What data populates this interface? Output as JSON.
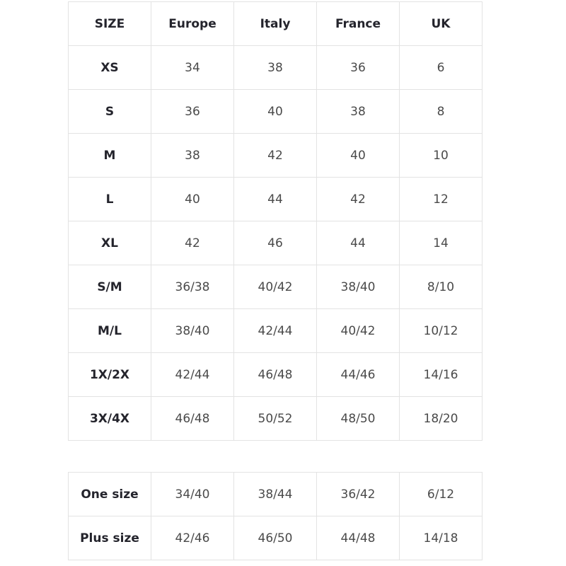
{
  "size_chart": {
    "headers": [
      "SIZE",
      "Europe",
      "Italy",
      "France",
      "UK"
    ],
    "rows": [
      [
        "XS",
        "34",
        "38",
        "36",
        "6"
      ],
      [
        "S",
        "36",
        "40",
        "38",
        "8"
      ],
      [
        "M",
        "38",
        "42",
        "40",
        "10"
      ],
      [
        "L",
        "40",
        "44",
        "42",
        "12"
      ],
      [
        "XL",
        "42",
        "46",
        "44",
        "14"
      ],
      [
        "S/M",
        "36/38",
        "40/42",
        "38/40",
        "8/10"
      ],
      [
        "M/L",
        "38/40",
        "42/44",
        "40/42",
        "10/12"
      ],
      [
        "1X/2X",
        "42/44",
        "46/48",
        "44/46",
        "14/16"
      ],
      [
        "3X/4X",
        "46/48",
        "50/52",
        "48/50",
        "18/20"
      ]
    ]
  },
  "extra_sizes": {
    "rows": [
      [
        "One size",
        "34/40",
        "38/44",
        "36/42",
        "6/12"
      ],
      [
        "Plus size",
        "42/46",
        "46/50",
        "44/48",
        "14/18"
      ]
    ]
  }
}
